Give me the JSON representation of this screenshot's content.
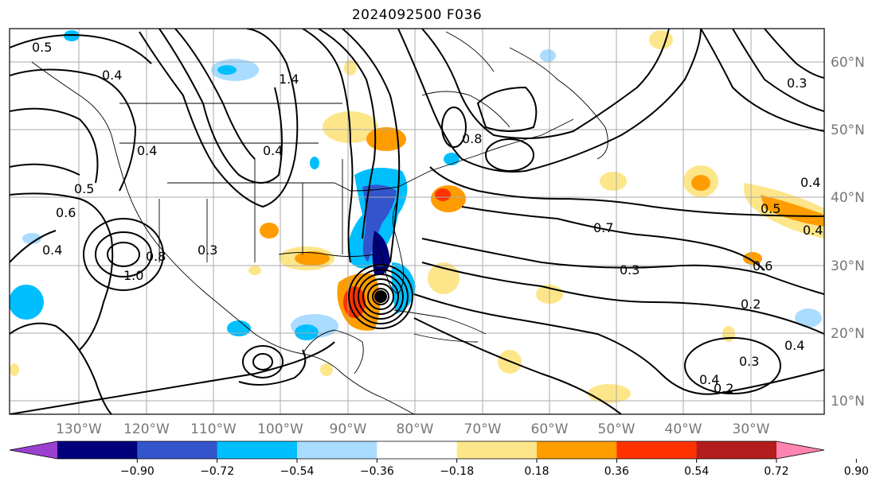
{
  "title": "2024092500 F036",
  "map": {
    "lon_labels": [
      "130°W",
      "120°W",
      "110°W",
      "100°W",
      "90°W",
      "80°W",
      "70°W",
      "60°W",
      "50°W",
      "40°W",
      "30°W"
    ],
    "lat_labels": [
      "60°N",
      "50°N",
      "40°N",
      "30°N",
      "20°N",
      "10°N"
    ],
    "contour_labels": [
      "0.5",
      "0.4",
      "0.4",
      "0.5",
      "0.6",
      "0.4",
      "0.3",
      "1.0",
      "0.8",
      "0.4",
      "1.4",
      "0.8",
      "0.7",
      "0.3",
      "0.2",
      "0.5",
      "0.4",
      "0.4",
      "0.6",
      "0.3",
      "0.4",
      "0.3",
      "0.4",
      "0.2"
    ],
    "storm_marker": "hurricane-center"
  },
  "colorbar": {
    "ticks": [
      "−0.90",
      "−0.72",
      "−0.54",
      "−0.36",
      "−0.18",
      "0.18",
      "0.36",
      "0.54",
      "0.72",
      "0.90"
    ],
    "colors": [
      "#9b3fd0",
      "#00007a",
      "#3355cc",
      "#00bfff",
      "#aadcff",
      "#ffffff",
      "#fde68a",
      "#ff9d00",
      "#ff3300",
      "#b31d1d",
      "#ff85b0"
    ]
  }
}
